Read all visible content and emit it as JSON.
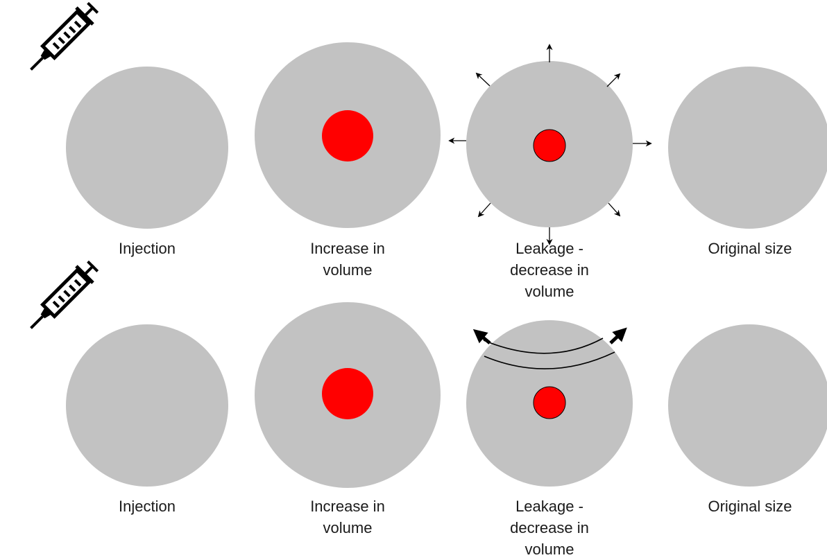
{
  "colors": {
    "background": "#ffffff",
    "circle_fill": "#c2c2c2",
    "dye_fill": "#ff0000",
    "ink": "#000000",
    "label_text": "#1a1a1a"
  },
  "rows": [
    {
      "leakage_mode": "arrows-in-all-directions",
      "stages": [
        {
          "label": "Injection"
        },
        {
          "label": "Increase in\nvolume"
        },
        {
          "label": "Leakage -\ndecrease in\nvolume"
        },
        {
          "label": "Original size"
        }
      ]
    },
    {
      "leakage_mode": "arc-band-with-two-arrows",
      "stages": [
        {
          "label": "Injection"
        },
        {
          "label": "Increase in\nvolume"
        },
        {
          "label": "Leakage -\ndecrease in\nvolume"
        },
        {
          "label": "Original size"
        }
      ]
    }
  ],
  "icons": {
    "injector": "syringe-icon",
    "leak_direction": "arrow-icon"
  }
}
